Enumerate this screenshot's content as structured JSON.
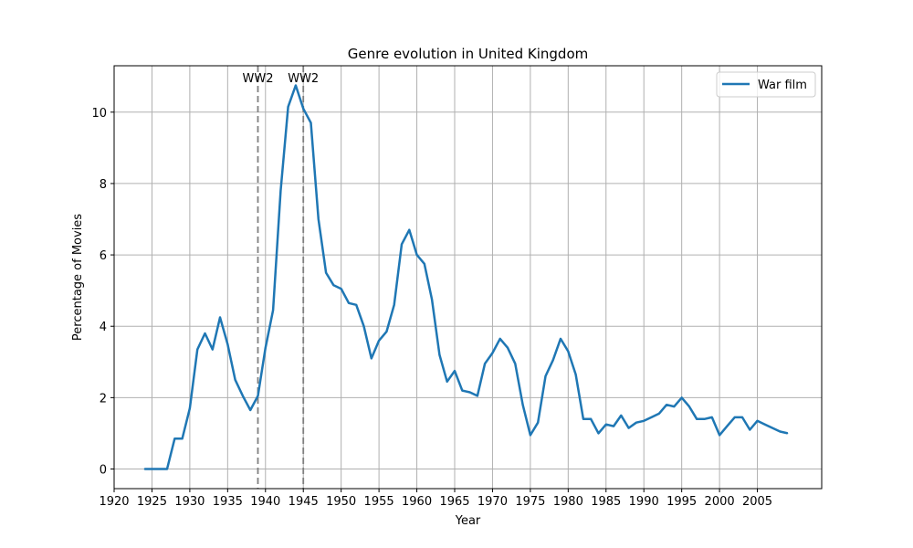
{
  "chart_data": {
    "type": "line",
    "title": "Genre evolution in United Kingdom",
    "xlabel": "Year",
    "ylabel": "Percentage of Movies",
    "xlim": [
      1920,
      2013.5
    ],
    "ylim": [
      -0.55,
      11.3
    ],
    "xticks": [
      1920,
      1925,
      1930,
      1935,
      1940,
      1945,
      1950,
      1955,
      1960,
      1965,
      1970,
      1975,
      1980,
      1985,
      1990,
      1995,
      2000,
      2005
    ],
    "yticks": [
      0,
      2,
      4,
      6,
      8,
      10
    ],
    "grid": true,
    "legend_position": "top-right",
    "series": [
      {
        "name": "War film",
        "color": "#1f77b4",
        "x": [
          1924,
          1925,
          1926,
          1927,
          1928,
          1929,
          1930,
          1931,
          1932,
          1933,
          1934,
          1935,
          1936,
          1937,
          1938,
          1939,
          1940,
          1941,
          1942,
          1943,
          1944,
          1945,
          1946,
          1947,
          1948,
          1949,
          1950,
          1951,
          1952,
          1953,
          1954,
          1955,
          1956,
          1957,
          1958,
          1959,
          1960,
          1961,
          1962,
          1963,
          1964,
          1965,
          1966,
          1967,
          1968,
          1969,
          1970,
          1971,
          1972,
          1973,
          1974,
          1975,
          1976,
          1977,
          1978,
          1979,
          1980,
          1981,
          1982,
          1983,
          1984,
          1985,
          1986,
          1987,
          1988,
          1989,
          1990,
          1991,
          1992,
          1993,
          1994,
          1995,
          1996,
          1997,
          1998,
          1999,
          2000,
          2001,
          2002,
          2003,
          2004,
          2005,
          2006,
          2007,
          2008,
          2009
        ],
        "y": [
          0,
          0,
          0,
          0,
          0.85,
          0.85,
          1.7,
          3.35,
          3.8,
          3.35,
          4.25,
          3.5,
          2.5,
          2.05,
          1.65,
          2.05,
          3.4,
          4.45,
          7.8,
          10.15,
          10.75,
          10.1,
          9.7,
          7.0,
          5.5,
          5.15,
          5.05,
          4.65,
          4.6,
          4.0,
          3.1,
          3.6,
          3.85,
          4.6,
          6.3,
          6.7,
          6.0,
          5.75,
          4.75,
          3.2,
          2.45,
          2.75,
          2.2,
          2.15,
          2.05,
          2.95,
          3.25,
          3.65,
          3.4,
          2.95,
          1.8,
          0.95,
          1.3,
          2.6,
          3.05,
          3.65,
          3.3,
          2.65,
          1.4,
          1.4,
          1.0,
          1.25,
          1.2,
          1.5,
          1.15,
          1.3,
          1.35,
          1.45,
          1.55,
          1.8,
          1.75,
          2.0,
          1.75,
          1.4,
          1.4,
          1.45,
          0.95,
          1.2,
          1.45,
          1.45,
          1.1,
          1.35,
          1.25,
          1.15,
          1.05,
          1.0
        ]
      }
    ],
    "annotations": [
      {
        "x": 1939,
        "label": "WW2"
      },
      {
        "x": 1945,
        "label": "WW2"
      }
    ]
  }
}
